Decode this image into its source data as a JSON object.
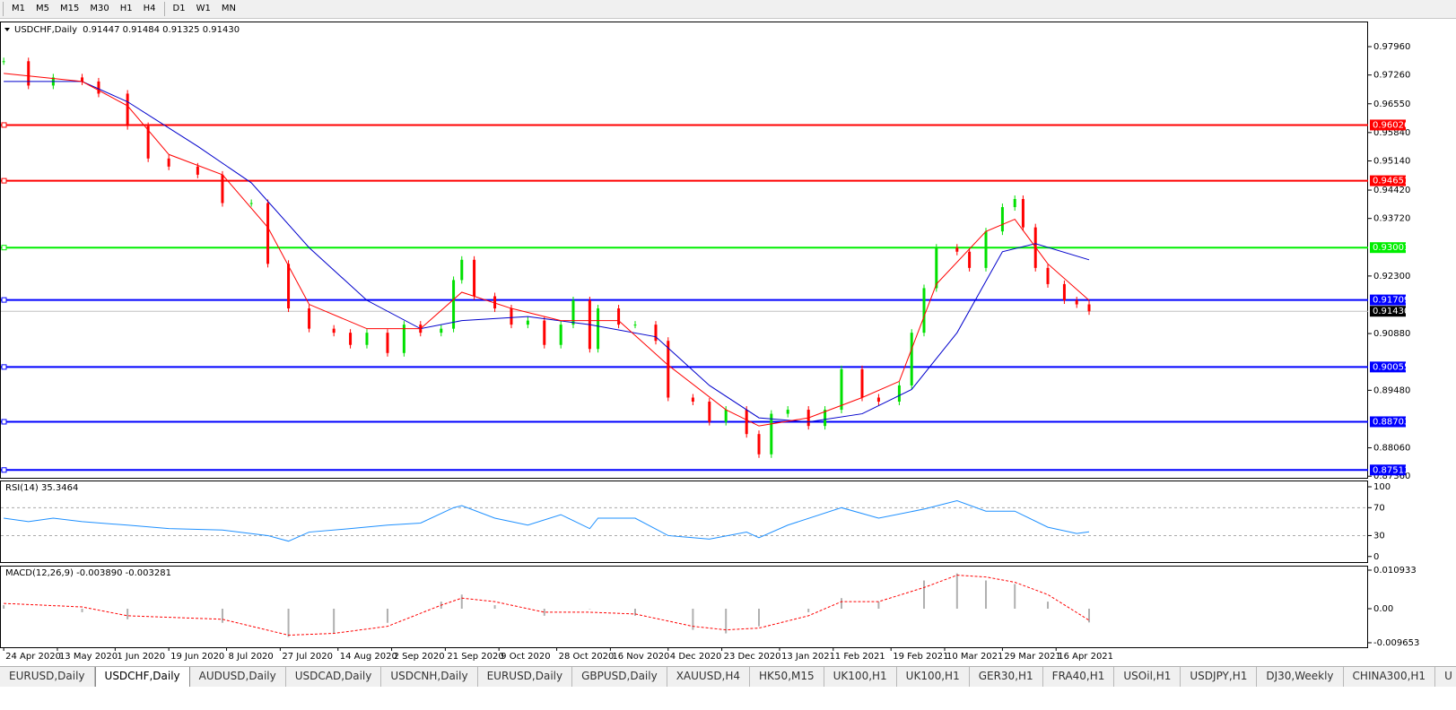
{
  "toolbar": {
    "timeframes": [
      "M1",
      "M5",
      "M15",
      "M30",
      "H1",
      "H4",
      "D1",
      "W1",
      "MN"
    ]
  },
  "chart_data": [
    {
      "type": "candlestick",
      "title": "USDCHF,Daily",
      "subtitle": "0.91447 0.91484 0.91325 0.91430",
      "x": [
        0,
        6,
        12,
        19,
        23,
        30,
        35,
        40,
        47,
        53,
        60,
        64,
        69,
        74,
        80,
        84,
        88,
        93,
        97,
        101,
        106,
        109,
        111,
        114,
        119,
        123,
        127,
        131,
        135,
        138,
        142,
        144,
        149,
        153,
        158,
        161,
        167,
        171,
        175,
        180,
        183,
        186,
        190,
        195,
        199,
        203,
        208,
        212,
        217,
        220,
        223,
        226,
        231,
        234,
        238,
        242,
        245,
        247,
        250,
        253,
        257,
        260,
        263
      ],
      "values": [
        0.976,
        0.97,
        0.972,
        0.971,
        0.968,
        0.96,
        0.952,
        0.95,
        0.948,
        0.941,
        0.941,
        0.926,
        0.915,
        0.91,
        0.909,
        0.906,
        0.909,
        0.904,
        0.911,
        0.909,
        0.91,
        0.922,
        0.927,
        0.918,
        0.915,
        0.911,
        0.912,
        0.906,
        0.911,
        0.917,
        0.905,
        0.915,
        0.911,
        0.911,
        0.907,
        0.893,
        0.892,
        0.887,
        0.89,
        0.884,
        0.879,
        0.889,
        0.89,
        0.886,
        0.89,
        0.9,
        0.893,
        0.892,
        0.896,
        0.909,
        0.92,
        0.93,
        0.929,
        0.925,
        0.934,
        0.94,
        0.942,
        0.935,
        0.925,
        0.921,
        0.917,
        0.916,
        0.9143
      ],
      "up_color": "#00e000",
      "down_color": "#ff0000",
      "series": [
        {
          "color": "#0000cc",
          "x": [
            0,
            19,
            30,
            47,
            60,
            74,
            88,
            101,
            111,
            127,
            142,
            158,
            171,
            183,
            195,
            208,
            220,
            231,
            242,
            250,
            263
          ],
          "values": [
            0.971,
            0.971,
            0.966,
            0.955,
            0.946,
            0.93,
            0.917,
            0.91,
            0.912,
            0.913,
            0.911,
            0.908,
            0.896,
            0.888,
            0.887,
            0.889,
            0.895,
            0.909,
            0.929,
            0.931,
            0.927
          ]
        },
        {
          "color": "#ff0000",
          "x": [
            0,
            19,
            30,
            40,
            53,
            64,
            74,
            88,
            101,
            111,
            123,
            135,
            149,
            161,
            175,
            183,
            195,
            208,
            217,
            226,
            238,
            245,
            253,
            263
          ],
          "values": [
            0.973,
            0.971,
            0.965,
            0.953,
            0.948,
            0.935,
            0.916,
            0.91,
            0.91,
            0.919,
            0.915,
            0.912,
            0.912,
            0.901,
            0.89,
            0.886,
            0.888,
            0.893,
            0.897,
            0.921,
            0.934,
            0.937,
            0.926,
            0.917
          ]
        }
      ],
      "xlim": [
        -0.9,
        330.6
      ],
      "xticks": [
        {
          "value": 0,
          "label": "24 Apr 2020"
        },
        {
          "value": 13,
          "label": "13 May 2020"
        },
        {
          "value": 27,
          "label": "1 Jun 2020"
        },
        {
          "value": 40,
          "label": "19 Jun 2020"
        },
        {
          "value": 54,
          "label": "8 Jul 2020"
        },
        {
          "value": 67,
          "label": "27 Jul 2020"
        },
        {
          "value": 81,
          "label": "14 Aug 2020"
        },
        {
          "value": 94,
          "label": "2 Sep 2020"
        },
        {
          "value": 107,
          "label": "21 Sep 2020"
        },
        {
          "value": 120,
          "label": "9 Oct 2020"
        },
        {
          "value": 134,
          "label": "28 Oct 2020"
        },
        {
          "value": 147,
          "label": "16 Nov 2020"
        },
        {
          "value": 161,
          "label": "4 Dec 2020"
        },
        {
          "value": 174,
          "label": "23 Dec 2020"
        },
        {
          "value": 188,
          "label": "13 Jan 2021"
        },
        {
          "value": 201,
          "label": "1 Feb 2021"
        },
        {
          "value": 215,
          "label": "19 Feb 2021"
        },
        {
          "value": 228,
          "label": "10 Mar 2021"
        },
        {
          "value": 242,
          "label": "29 Mar 2021"
        },
        {
          "value": 255,
          "label": "16 Apr 2021"
        }
      ],
      "ylim": [
        0.8732,
        0.9858
      ],
      "yticks": [
        {
          "value": 0.9796,
          "label": "0.97960"
        },
        {
          "value": 0.9726,
          "label": "0.97260"
        },
        {
          "value": 0.9655,
          "label": "0.96550"
        },
        {
          "value": 0.9584,
          "label": "0.95840"
        },
        {
          "value": 0.9514,
          "label": "0.95140"
        },
        {
          "value": 0.9442,
          "label": "0.94420"
        },
        {
          "value": 0.9372,
          "label": "0.93720"
        },
        {
          "value": 0.923,
          "label": "0.92300"
        },
        {
          "value": 0.9088,
          "label": "0.90880"
        },
        {
          "value": 0.8948,
          "label": "0.89480"
        },
        {
          "value": 0.8806,
          "label": "0.88060"
        },
        {
          "value": 0.8736,
          "label": "0.87360"
        }
      ],
      "levels": [
        {
          "value": 0.96026,
          "color": "#ff0000"
        },
        {
          "value": 0.94651,
          "color": "#ff0000"
        },
        {
          "value": 0.93001,
          "color": "#00ee00"
        },
        {
          "value": 0.91709,
          "color": "#0000ff"
        },
        {
          "value": 0.90055,
          "color": "#0000ff"
        },
        {
          "value": 0.88703,
          "color": "#0000ff"
        },
        {
          "value": 0.87513,
          "color": "#0000ff"
        }
      ],
      "current": {
        "value": 0.9143,
        "label": "0.91430"
      }
    },
    {
      "type": "line",
      "title": "RSI(14) 35.3464",
      "color": "#1e90ff",
      "x": [
        0,
        6,
        12,
        19,
        30,
        40,
        53,
        64,
        69,
        74,
        84,
        93,
        101,
        109,
        111,
        119,
        127,
        135,
        142,
        144,
        153,
        161,
        171,
        180,
        183,
        190,
        203,
        212,
        223,
        231,
        238,
        245,
        253,
        260,
        263
      ],
      "values": [
        55,
        50,
        55,
        50,
        45,
        40,
        38,
        30,
        22,
        35,
        40,
        45,
        48,
        70,
        73,
        55,
        45,
        60,
        40,
        55,
        55,
        30,
        25,
        35,
        27,
        45,
        70,
        55,
        68,
        80,
        65,
        65,
        42,
        33,
        35.3464
      ],
      "xlim": [
        -0.9,
        330.6
      ],
      "ylim": [
        -8,
        109
      ],
      "yticks": [
        100,
        70,
        30,
        0
      ],
      "dashed_levels": [
        70,
        30
      ]
    },
    {
      "type": "bar",
      "title": "MACD(12,26,9) -0.003890 -0.003281",
      "color": "#b0b0b0",
      "x": [
        0,
        19,
        30,
        53,
        69,
        80,
        93,
        106,
        111,
        119,
        131,
        142,
        153,
        167,
        175,
        183,
        195,
        203,
        212,
        223,
        231,
        238,
        245,
        253,
        263
      ],
      "values": [
        0.001,
        -0.001,
        -0.003,
        -0.004,
        -0.008,
        -0.007,
        -0.004,
        0.002,
        0.004,
        0.001,
        -0.002,
        0,
        -0.002,
        -0.006,
        -0.007,
        -0.005,
        -0.001,
        0.003,
        0.002,
        0.008,
        0.01,
        0.008,
        0.007,
        0.002,
        -0.00389
      ],
      "series": [
        {
          "color": "#ff0000",
          "x": [
            0,
            19,
            30,
            53,
            69,
            80,
            93,
            106,
            111,
            119,
            131,
            142,
            153,
            167,
            175,
            183,
            195,
            203,
            212,
            223,
            231,
            238,
            245,
            253,
            263
          ],
          "values": [
            0.0015,
            0.0005,
            -0.002,
            -0.003,
            -0.0075,
            -0.007,
            -0.005,
            0.001,
            0.003,
            0.002,
            -0.001,
            -0.001,
            -0.0015,
            -0.005,
            -0.006,
            -0.0055,
            -0.002,
            0.002,
            0.002,
            0.006,
            0.0095,
            0.009,
            0.0075,
            0.004,
            -0.003281
          ]
        }
      ],
      "xlim": [
        -0.9,
        330.6
      ],
      "ylim": [
        -0.01093,
        0.0122
      ],
      "yticks": [
        0.010933,
        {
          "value": 0,
          "label": "0.00"
        },
        -0.009653
      ]
    }
  ],
  "tabs": {
    "items": [
      "EURUSD,Daily",
      "USDCHF,Daily",
      "AUDUSD,Daily",
      "USDCAD,Daily",
      "USDCNH,Daily",
      "EURUSD,Daily",
      "GBPUSD,Daily",
      "XAUUSD,H4",
      "HK50,M15",
      "UK100,H1",
      "UK100,H1",
      "GER30,H1",
      "FRA40,H1",
      "USOil,H1",
      "USDJPY,H1",
      "DJ30,Weekly",
      "CHINA300,H1",
      "U"
    ],
    "active": 1
  }
}
